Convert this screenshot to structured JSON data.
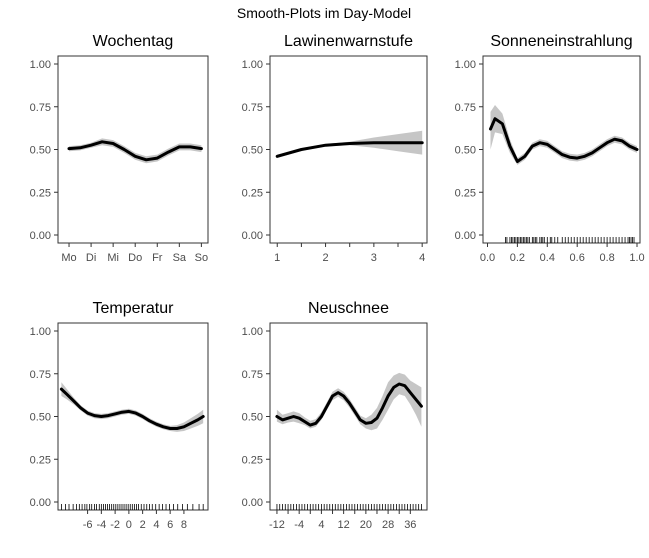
{
  "figure": {
    "title": "Smooth-Plots im Day-Model"
  },
  "chart_data": [
    {
      "type": "line",
      "title": "Wochentag",
      "ylim": [
        0,
        1
      ],
      "yticks": [
        0,
        0.25,
        0.5,
        0.75,
        1
      ],
      "ytick_labels": [
        "0.00",
        "0.25",
        "0.50",
        "0.75",
        "1.00"
      ],
      "xlim": [
        0.5,
        7.3
      ],
      "xticks": [
        1,
        2,
        3,
        4,
        5,
        6,
        7
      ],
      "xtick_labels": [
        "Mo",
        "Di",
        "Mi",
        "Do",
        "Fr",
        "Sa",
        "So"
      ],
      "series": [
        {
          "x": [
            1,
            1.5,
            2,
            2.5,
            3,
            3.5,
            4,
            4.5,
            5,
            5.5,
            6,
            6.5,
            7
          ],
          "y": [
            0.505,
            0.51,
            0.525,
            0.545,
            0.535,
            0.5,
            0.46,
            0.44,
            0.45,
            0.485,
            0.515,
            0.515,
            0.505
          ],
          "lower": [
            0.49,
            0.495,
            0.51,
            0.525,
            0.515,
            0.48,
            0.44,
            0.42,
            0.43,
            0.465,
            0.495,
            0.495,
            0.485
          ],
          "upper": [
            0.52,
            0.525,
            0.54,
            0.565,
            0.555,
            0.52,
            0.48,
            0.46,
            0.47,
            0.505,
            0.535,
            0.535,
            0.525
          ]
        }
      ],
      "rug": []
    },
    {
      "type": "line",
      "title": "Lawinenwarnstufe",
      "ylim": [
        0,
        1
      ],
      "yticks": [
        0,
        0.25,
        0.5,
        0.75,
        1
      ],
      "ytick_labels": [
        "0.00",
        "0.25",
        "0.50",
        "0.75",
        "1.00"
      ],
      "xlim": [
        0.85,
        4.1
      ],
      "xticks": [
        1,
        2,
        3,
        4
      ],
      "xtick_labels": [
        "1",
        "2",
        "3",
        "4"
      ],
      "series": [
        {
          "x": [
            1,
            1.5,
            2,
            2.5,
            3,
            3.5,
            4
          ],
          "y": [
            0.46,
            0.5,
            0.525,
            0.535,
            0.54,
            0.54,
            0.54
          ],
          "lower": [
            0.45,
            0.492,
            0.518,
            0.525,
            0.51,
            0.49,
            0.47
          ],
          "upper": [
            0.47,
            0.508,
            0.532,
            0.545,
            0.57,
            0.59,
            0.61
          ]
        }
      ],
      "minor_xticks": [
        1.5,
        2.5,
        3.5
      ],
      "rug": []
    },
    {
      "type": "line",
      "title": "Sonneneinstrahlung",
      "ylim": [
        0,
        1
      ],
      "yticks": [
        0,
        0.25,
        0.5,
        0.75,
        1
      ],
      "ytick_labels": [
        "0.00",
        "0.25",
        "0.50",
        "0.75",
        "1.00"
      ],
      "xlim": [
        -0.03,
        1.02
      ],
      "xticks": [
        0,
        0.2,
        0.4,
        0.6,
        0.8,
        1.0
      ],
      "xtick_labels": [
        "0.0",
        "0.2",
        "0.4",
        "0.6",
        "0.8",
        "1.0"
      ],
      "series": [
        {
          "x": [
            0.02,
            0.05,
            0.1,
            0.15,
            0.2,
            0.25,
            0.3,
            0.35,
            0.4,
            0.45,
            0.5,
            0.55,
            0.6,
            0.65,
            0.7,
            0.75,
            0.8,
            0.85,
            0.9,
            0.95,
            1.0
          ],
          "y": [
            0.62,
            0.68,
            0.65,
            0.52,
            0.43,
            0.46,
            0.52,
            0.54,
            0.53,
            0.5,
            0.47,
            0.455,
            0.45,
            0.46,
            0.48,
            0.51,
            0.54,
            0.56,
            0.55,
            0.52,
            0.5
          ],
          "lower": [
            0.5,
            0.6,
            0.59,
            0.48,
            0.41,
            0.44,
            0.5,
            0.52,
            0.51,
            0.48,
            0.45,
            0.435,
            0.43,
            0.44,
            0.46,
            0.49,
            0.52,
            0.54,
            0.53,
            0.5,
            0.48
          ],
          "upper": [
            0.72,
            0.76,
            0.71,
            0.56,
            0.45,
            0.48,
            0.54,
            0.56,
            0.55,
            0.52,
            0.49,
            0.475,
            0.47,
            0.48,
            0.5,
            0.53,
            0.56,
            0.58,
            0.57,
            0.54,
            0.52
          ]
        }
      ],
      "rug": [
        0.12,
        0.13,
        0.15,
        0.16,
        0.17,
        0.18,
        0.19,
        0.2,
        0.21,
        0.22,
        0.23,
        0.24,
        0.25,
        0.26,
        0.27,
        0.28,
        0.3,
        0.31,
        0.32,
        0.33,
        0.35,
        0.36,
        0.37,
        0.38,
        0.4,
        0.42,
        0.43,
        0.45,
        0.47,
        0.5,
        0.52,
        0.54,
        0.56,
        0.58,
        0.6,
        0.62,
        0.64,
        0.66,
        0.68,
        0.7,
        0.72,
        0.74,
        0.76,
        0.78,
        0.8,
        0.82,
        0.84,
        0.86,
        0.88,
        0.9,
        0.92,
        0.94,
        0.95,
        0.96,
        0.97,
        0.98
      ]
    },
    {
      "type": "line",
      "title": "Temperatur",
      "ylim": [
        0,
        1
      ],
      "yticks": [
        0,
        0.25,
        0.5,
        0.75,
        1
      ],
      "ytick_labels": [
        "0.00",
        "0.25",
        "0.50",
        "0.75",
        "1.00"
      ],
      "xlim": [
        -10.3,
        11.5
      ],
      "xticks": [
        -6,
        -4,
        -2,
        0,
        2,
        4,
        6,
        8
      ],
      "xtick_labels": [
        "-6",
        "-4",
        "-2",
        "0",
        "2",
        "4",
        "6",
        "8"
      ],
      "series": [
        {
          "x": [
            -9.8,
            -9,
            -8,
            -7,
            -6,
            -5,
            -4,
            -3,
            -2,
            -1,
            0,
            1,
            2,
            3,
            4,
            5,
            6,
            7,
            8,
            9,
            10,
            10.8
          ],
          "y": [
            0.66,
            0.63,
            0.59,
            0.55,
            0.52,
            0.505,
            0.5,
            0.505,
            0.515,
            0.525,
            0.53,
            0.52,
            0.5,
            0.475,
            0.455,
            0.44,
            0.43,
            0.43,
            0.44,
            0.46,
            0.48,
            0.5
          ],
          "lower": [
            0.62,
            0.6,
            0.57,
            0.535,
            0.505,
            0.49,
            0.485,
            0.49,
            0.5,
            0.51,
            0.515,
            0.505,
            0.485,
            0.46,
            0.44,
            0.425,
            0.415,
            0.41,
            0.415,
            0.43,
            0.445,
            0.46
          ],
          "upper": [
            0.7,
            0.66,
            0.61,
            0.565,
            0.535,
            0.52,
            0.515,
            0.52,
            0.53,
            0.54,
            0.545,
            0.535,
            0.515,
            0.49,
            0.47,
            0.455,
            0.445,
            0.45,
            0.465,
            0.49,
            0.515,
            0.54
          ]
        }
      ],
      "rug": [
        -9.8,
        -9.2,
        -8.7,
        -8.1,
        -7.6,
        -7.2,
        -6.8,
        -6.4,
        -6.1,
        -5.7,
        -5.4,
        -5.0,
        -4.7,
        -4.3,
        -4.0,
        -3.7,
        -3.4,
        -3.1,
        -2.8,
        -2.5,
        -2.2,
        -1.9,
        -1.6,
        -1.3,
        -1.0,
        -0.7,
        -0.4,
        -0.1,
        0.2,
        0.5,
        0.8,
        1.1,
        1.4,
        1.8,
        2.2,
        2.6,
        3.0,
        3.4,
        3.9,
        4.4,
        4.9,
        5.4,
        5.9,
        6.5,
        7.1,
        7.8,
        8.5,
        9.3,
        10.2,
        10.8
      ]
    },
    {
      "type": "line",
      "title": "Neuschnee",
      "ylim": [
        0,
        1
      ],
      "yticks": [
        0,
        0.25,
        0.5,
        0.75,
        1
      ],
      "ytick_labels": [
        "0.00",
        "0.25",
        "0.50",
        "0.75",
        "1.00"
      ],
      "xlim": [
        -14.5,
        42
      ],
      "xticks": [
        -12,
        -4,
        4,
        12,
        20,
        28,
        36
      ],
      "xtick_labels": [
        "-12",
        "-4",
        "4",
        "12",
        "20",
        "28",
        "36"
      ],
      "minor_xticks": [
        -8,
        0,
        8,
        16,
        24,
        32
      ],
      "series": [
        {
          "x": [
            -12,
            -10,
            -8,
            -6,
            -4,
            -2,
            0,
            2,
            4,
            6,
            8,
            10,
            12,
            14,
            16,
            18,
            20,
            22,
            24,
            26,
            28,
            30,
            32,
            34,
            36,
            38,
            40
          ],
          "y": [
            0.5,
            0.48,
            0.49,
            0.5,
            0.49,
            0.47,
            0.45,
            0.46,
            0.5,
            0.56,
            0.62,
            0.64,
            0.62,
            0.58,
            0.53,
            0.48,
            0.46,
            0.465,
            0.49,
            0.55,
            0.62,
            0.67,
            0.69,
            0.68,
            0.64,
            0.6,
            0.56
          ],
          "lower": [
            0.47,
            0.455,
            0.465,
            0.47,
            0.46,
            0.45,
            0.43,
            0.44,
            0.48,
            0.54,
            0.595,
            0.615,
            0.595,
            0.555,
            0.505,
            0.455,
            0.43,
            0.42,
            0.43,
            0.48,
            0.54,
            0.6,
            0.63,
            0.62,
            0.57,
            0.51,
            0.44
          ],
          "upper": [
            0.54,
            0.51,
            0.52,
            0.53,
            0.52,
            0.495,
            0.475,
            0.485,
            0.525,
            0.585,
            0.645,
            0.665,
            0.645,
            0.605,
            0.555,
            0.505,
            0.49,
            0.51,
            0.55,
            0.62,
            0.7,
            0.74,
            0.755,
            0.745,
            0.71,
            0.69,
            0.67
          ]
        }
      ],
      "rug": [
        -12,
        -11,
        -10,
        -9,
        -8,
        -7,
        -6,
        -5,
        -4,
        -3,
        -2,
        -1,
        0,
        1,
        2,
        3,
        4,
        5,
        6,
        7,
        8,
        9,
        10,
        11,
        12,
        13,
        14,
        15,
        16,
        17,
        18,
        19,
        20,
        21,
        22,
        23,
        24,
        25,
        26,
        27,
        28,
        29,
        30,
        31,
        32,
        33,
        34,
        35,
        36,
        37,
        38,
        39,
        40
      ]
    }
  ]
}
